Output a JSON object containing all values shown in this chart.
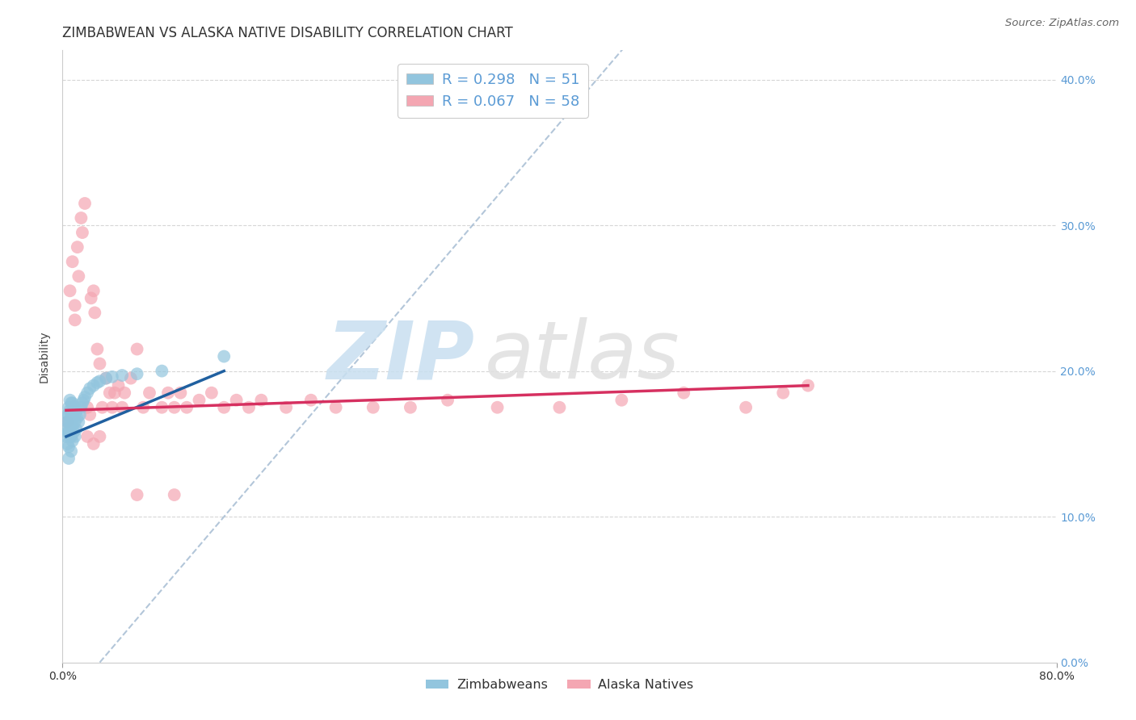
{
  "title": "ZIMBABWEAN VS ALASKA NATIVE DISABILITY CORRELATION CHART",
  "source": "Source: ZipAtlas.com",
  "ylabel": "Disability",
  "xlim": [
    0.0,
    0.8
  ],
  "ylim": [
    0.0,
    0.42
  ],
  "ytick_labels": [
    "0.0%",
    "10.0%",
    "20.0%",
    "30.0%",
    "40.0%"
  ],
  "ytick_vals": [
    0.0,
    0.1,
    0.2,
    0.3,
    0.4
  ],
  "grid_color": "#cccccc",
  "background_color": "#ffffff",
  "legend_R1": "R = 0.298",
  "legend_N1": "N = 51",
  "legend_R2": "R = 0.067",
  "legend_N2": "N = 58",
  "blue_color": "#92c5de",
  "pink_color": "#f4a6b2",
  "blue_line_color": "#2060a0",
  "pink_line_color": "#d63060",
  "dashed_line_color": "#a0b8d0",
  "title_fontsize": 12,
  "axis_fontsize": 10,
  "tick_fontsize": 10,
  "legend_fontsize": 13,
  "zim_x": [
    0.003,
    0.003,
    0.004,
    0.004,
    0.004,
    0.004,
    0.005,
    0.005,
    0.005,
    0.005,
    0.005,
    0.005,
    0.006,
    0.006,
    0.006,
    0.006,
    0.007,
    0.007,
    0.007,
    0.007,
    0.007,
    0.008,
    0.008,
    0.008,
    0.008,
    0.009,
    0.009,
    0.009,
    0.01,
    0.01,
    0.01,
    0.011,
    0.011,
    0.012,
    0.013,
    0.014,
    0.015,
    0.016,
    0.017,
    0.018,
    0.02,
    0.022,
    0.025,
    0.028,
    0.03,
    0.035,
    0.04,
    0.048,
    0.06,
    0.08,
    0.13
  ],
  "zim_y": [
    0.16,
    0.155,
    0.17,
    0.165,
    0.158,
    0.15,
    0.175,
    0.17,
    0.165,
    0.158,
    0.148,
    0.14,
    0.18,
    0.173,
    0.165,
    0.155,
    0.178,
    0.17,
    0.162,
    0.155,
    0.145,
    0.178,
    0.17,
    0.162,
    0.152,
    0.175,
    0.168,
    0.158,
    0.175,
    0.165,
    0.155,
    0.172,
    0.16,
    0.168,
    0.165,
    0.17,
    0.175,
    0.178,
    0.18,
    0.182,
    0.185,
    0.188,
    0.19,
    0.192,
    0.193,
    0.195,
    0.196,
    0.197,
    0.198,
    0.2,
    0.21
  ],
  "ak_x": [
    0.004,
    0.006,
    0.008,
    0.01,
    0.01,
    0.012,
    0.013,
    0.015,
    0.016,
    0.018,
    0.02,
    0.022,
    0.023,
    0.025,
    0.026,
    0.028,
    0.03,
    0.032,
    0.035,
    0.038,
    0.04,
    0.042,
    0.045,
    0.048,
    0.05,
    0.055,
    0.06,
    0.065,
    0.07,
    0.08,
    0.085,
    0.09,
    0.095,
    0.1,
    0.11,
    0.12,
    0.13,
    0.14,
    0.15,
    0.16,
    0.18,
    0.2,
    0.22,
    0.25,
    0.28,
    0.31,
    0.35,
    0.4,
    0.45,
    0.5,
    0.55,
    0.58,
    0.02,
    0.025,
    0.03,
    0.06,
    0.09,
    0.6
  ],
  "ak_y": [
    0.165,
    0.255,
    0.275,
    0.245,
    0.235,
    0.285,
    0.265,
    0.305,
    0.295,
    0.315,
    0.175,
    0.17,
    0.25,
    0.255,
    0.24,
    0.215,
    0.205,
    0.175,
    0.195,
    0.185,
    0.175,
    0.185,
    0.19,
    0.175,
    0.185,
    0.195,
    0.215,
    0.175,
    0.185,
    0.175,
    0.185,
    0.175,
    0.185,
    0.175,
    0.18,
    0.185,
    0.175,
    0.18,
    0.175,
    0.18,
    0.175,
    0.18,
    0.175,
    0.175,
    0.175,
    0.18,
    0.175,
    0.175,
    0.18,
    0.185,
    0.175,
    0.185,
    0.155,
    0.15,
    0.155,
    0.115,
    0.115,
    0.19
  ],
  "blue_line_x": [
    0.003,
    0.13
  ],
  "blue_line_y": [
    0.155,
    0.2
  ],
  "pink_line_x": [
    0.003,
    0.6
  ],
  "pink_line_y": [
    0.173,
    0.19
  ]
}
